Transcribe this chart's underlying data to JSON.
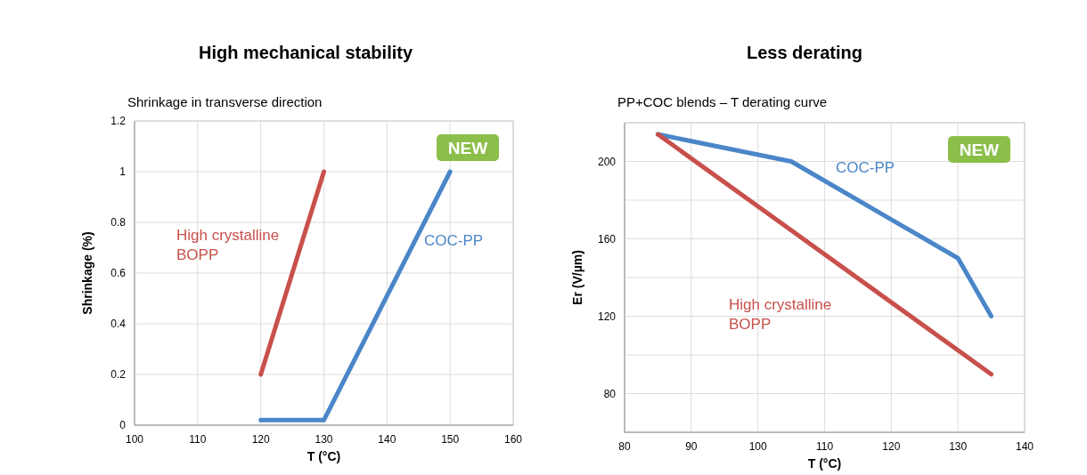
{
  "chart_data": [
    {
      "type": "line",
      "title": "High mechanical stability",
      "subtitle": "Shrinkage in transverse direction",
      "xlabel": "T (°C)",
      "ylabel": "Shrinkage (%)",
      "xlim": [
        100,
        160
      ],
      "xticks": [
        100,
        110,
        120,
        130,
        140,
        150,
        160
      ],
      "ylim": [
        0,
        1.2
      ],
      "yticks": [
        0,
        0.2,
        0.4,
        0.6,
        0.8,
        1,
        1.2
      ],
      "grid": true,
      "annotations": [
        "NEW"
      ],
      "series": [
        {
          "name": "High crystalline BOPP",
          "color": "#c8504b",
          "x": [
            120,
            130
          ],
          "values": [
            0.2,
            1
          ]
        },
        {
          "name": "COC-PP",
          "color": "#4a86c8",
          "x": [
            120,
            130,
            150
          ],
          "values": [
            0.02,
            0.02,
            1
          ]
        }
      ]
    },
    {
      "type": "line",
      "title": "Less derating",
      "subtitle": "PP+COC blends – T derating curve",
      "xlabel": "T (°C)",
      "ylabel": "Er (V/µm)",
      "xlim": [
        80,
        140
      ],
      "xticks": [
        80,
        90,
        100,
        110,
        120,
        130,
        140
      ],
      "ylim": [
        60,
        220
      ],
      "yticks": [
        80,
        {
          "value": 100,
          "label": null
        },
        120,
        {
          "value": 140,
          "label": null
        },
        160,
        {
          "value": 180,
          "label": null
        },
        200
      ],
      "grid": true,
      "annotations": [
        "NEW"
      ],
      "series": [
        {
          "name": "COC-PP",
          "color": "#4a86c8",
          "x": [
            85,
            105,
            130,
            135
          ],
          "values": [
            214,
            200,
            150,
            120
          ]
        },
        {
          "name": "High crystalline BOPP",
          "color": "#c8504b",
          "x": [
            85,
            135
          ],
          "values": [
            214,
            90
          ]
        }
      ]
    }
  ]
}
